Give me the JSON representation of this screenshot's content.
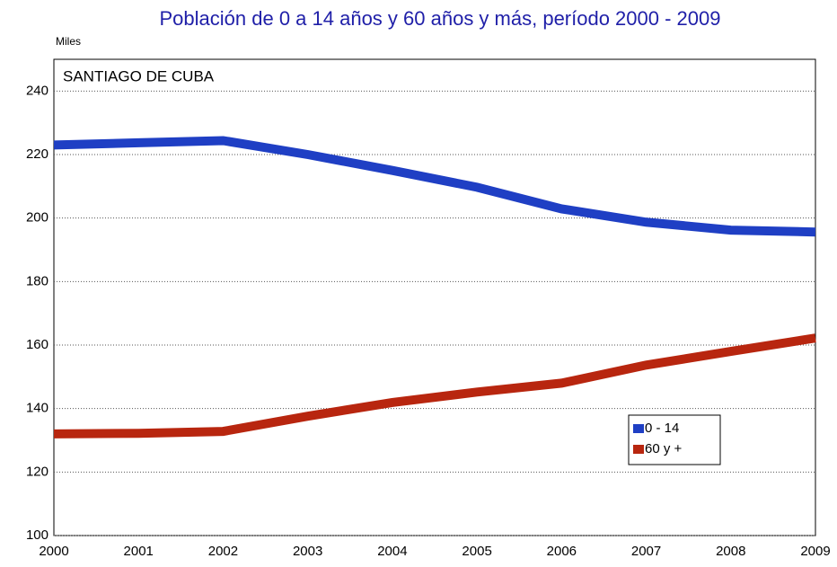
{
  "chart_data": {
    "type": "line",
    "title": "Población de 0 a 14 años y 60 años y más, período 2000 - 2009",
    "y_label": "Miles",
    "annotation": "SANTIAGO DE CUBA",
    "categories": [
      "2000",
      "2001",
      "2002",
      "2003",
      "2004",
      "2005",
      "2006",
      "2007",
      "2008",
      "2009"
    ],
    "series": [
      {
        "name": "0 - 14",
        "color": "#1f3fc4",
        "values": [
          223,
          223.7,
          224.4,
          220,
          215,
          209.7,
          202.9,
          198.7,
          196.2,
          195.6
        ]
      },
      {
        "name": "60 y +",
        "color": "#b8260f",
        "values": [
          132,
          132.2,
          132.8,
          137.6,
          141.9,
          145.2,
          148,
          153.7,
          158,
          162.2
        ]
      }
    ],
    "ylim": [
      100,
      250
    ],
    "yticks": [
      100,
      120,
      140,
      160,
      180,
      200,
      220,
      240
    ],
    "grid": true
  }
}
